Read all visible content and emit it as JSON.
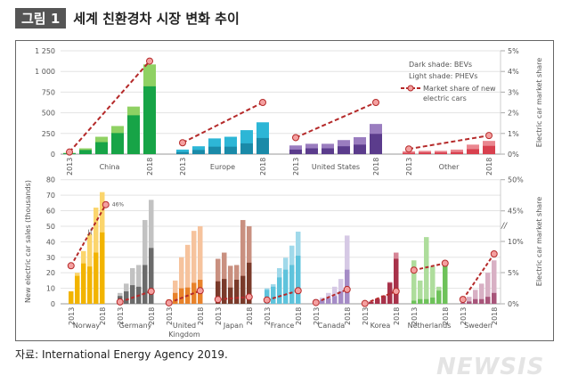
{
  "header": {
    "badge": "그림 1",
    "title": "세계 친환경차 시장 변화 추이"
  },
  "source": "자료: International Energy Agency 2019.",
  "watermark": "NEWSIS",
  "chart_data": [
    {
      "type": "bar",
      "stacked": true,
      "ylabel": "",
      "y2label": "Electric car market share",
      "ylim": [
        0,
        1250
      ],
      "yticks": [
        "0",
        "250",
        "500",
        "750",
        "1 000",
        "1 250"
      ],
      "y2lim": [
        0,
        5
      ],
      "y2ticks": [
        "0%",
        "1%",
        "2%",
        "3%",
        "4%",
        "5%"
      ],
      "grid": true,
      "legend": {
        "position": "top-right",
        "dark": "Dark shade: BEVs",
        "light": "Light shade: PHEVs",
        "line": "Market share of new electric cars",
        "line_l1": "Market share of new",
        "line_l2": "electric cars"
      },
      "years": [
        "2013",
        "2014",
        "2015",
        "2016",
        "2017",
        "2018"
      ],
      "year_labels": [
        "2013",
        "2018"
      ],
      "groups": [
        {
          "name": "China",
          "dark": "#17a447",
          "light": "#8fd163",
          "total": [
            15,
            70,
            210,
            340,
            575,
            1085
          ],
          "bev": [
            10,
            50,
            145,
            255,
            470,
            820
          ],
          "share_pct": [
            0.1,
            4.5
          ]
        },
        {
          "name": "Europe",
          "dark": "#1a8aa8",
          "light": "#2db6d6",
          "total": [
            55,
            95,
            190,
            210,
            290,
            385
          ],
          "bev": [
            25,
            50,
            90,
            90,
            130,
            195
          ],
          "share_pct": [
            0.55,
            2.5
          ]
        },
        {
          "name": "United States",
          "dark": "#5b3c8c",
          "light": "#9a7dbf",
          "total": [
            105,
            125,
            125,
            170,
            205,
            365
          ],
          "bev": [
            55,
            70,
            70,
            95,
            115,
            245
          ],
          "share_pct": [
            0.8,
            2.5
          ]
        },
        {
          "name": "Other",
          "dark": "#d8404e",
          "light": "#ea8790",
          "total": [
            35,
            40,
            40,
            55,
            115,
            160
          ],
          "bev": [
            15,
            20,
            20,
            25,
            60,
            100
          ],
          "share_pct": [
            0.25,
            0.9
          ]
        }
      ]
    },
    {
      "type": "bar",
      "stacked": true,
      "ylabel": "New electric car sales (thousands)",
      "y2label": "Electric car market share",
      "ylim": [
        0,
        80
      ],
      "yticks": [
        "0",
        "10",
        "20",
        "30",
        "40",
        "50",
        "60",
        "70",
        "80"
      ],
      "y2ticks": [
        "0%",
        "5%",
        "10%",
        "45%",
        "50%"
      ],
      "y2_break": "10%-45%",
      "grid": true,
      "annotation": "46%",
      "years": [
        "2013",
        "2014",
        "2015",
        "2016",
        "2017",
        "2018"
      ],
      "year_labels": [
        "2013",
        "2018"
      ],
      "groups": [
        {
          "name": "Norway",
          "dark": "#f2b400",
          "light": "#fbd56c",
          "total": [
            8,
            20,
            34,
            45,
            62,
            72
          ],
          "bev": [
            8,
            18,
            26,
            24,
            33,
            46
          ],
          "share_pct": [
            6.1,
            46
          ]
        },
        {
          "name": "Germany",
          "dark": "#6b6b6b",
          "light": "#c2c2c2",
          "total": [
            7,
            13,
            23,
            25,
            54,
            67
          ],
          "bev": [
            5,
            8,
            12,
            11,
            25,
            36
          ],
          "share_pct": [
            0.3,
            2
          ]
        },
        {
          "name": "United Kingdom",
          "name_l1": "United",
          "name_l2": "Kingdom",
          "dark": "#e8822a",
          "light": "#f6c39d",
          "total": [
            3,
            15,
            30,
            38,
            47,
            50
          ],
          "bev": [
            2,
            7,
            10,
            10.5,
            13.5,
            15.5
          ],
          "share_pct": [
            0.15,
            2.1
          ]
        },
        {
          "name": "Japan",
          "dark": "#7a3a2a",
          "light": "#c99080",
          "total": [
            29,
            33,
            24.5,
            25,
            54,
            50
          ],
          "bev": [
            14.5,
            16,
            10.5,
            15.5,
            18,
            26.5
          ],
          "share_pct": [
            0.7,
            1.1
          ]
        },
        {
          "name": "France",
          "dark": "#5ec3dc",
          "light": "#a0d9ea",
          "total": [
            10,
            12.6,
            23,
            29.7,
            37.5,
            46.5
          ],
          "bev": [
            9,
            11,
            17,
            22,
            25,
            31
          ],
          "share_pct": [
            0.6,
            2.1
          ]
        },
        {
          "name": "Canada",
          "dark": "#a58cc6",
          "light": "#d6c9e5",
          "total": [
            3,
            4,
            7,
            11,
            16,
            44
          ],
          "bev": [
            1.5,
            2.5,
            3.5,
            5,
            8,
            22
          ],
          "share_pct": [
            0.2,
            2.3
          ]
        },
        {
          "name": "Korea",
          "dark": "#a8324a",
          "light": "#d68596",
          "total": [
            0.5,
            1.5,
            3.5,
            5.5,
            14,
            33
          ],
          "bev": [
            0.5,
            1.2,
            3,
            5,
            13.5,
            29
          ],
          "share_pct": [
            0.05,
            2
          ]
        },
        {
          "name": "Netherlands",
          "dark": "#6ec25a",
          "light": "#aedd9c",
          "total": [
            28,
            15,
            43,
            24,
            11,
            27
          ],
          "bev": [
            2,
            3,
            3,
            4,
            8.5,
            25
          ],
          "share_pct": [
            5.4,
            6.5
          ]
        },
        {
          "name": "Sweden",
          "dark": "#a8557a",
          "light": "#d8b0c4",
          "total": [
            1,
            4.5,
            9,
            13,
            20,
            28
          ],
          "bev": [
            0.5,
            1.5,
            3,
            3,
            4.5,
            7
          ],
          "share_pct": [
            0.7,
            8
          ]
        }
      ]
    }
  ]
}
